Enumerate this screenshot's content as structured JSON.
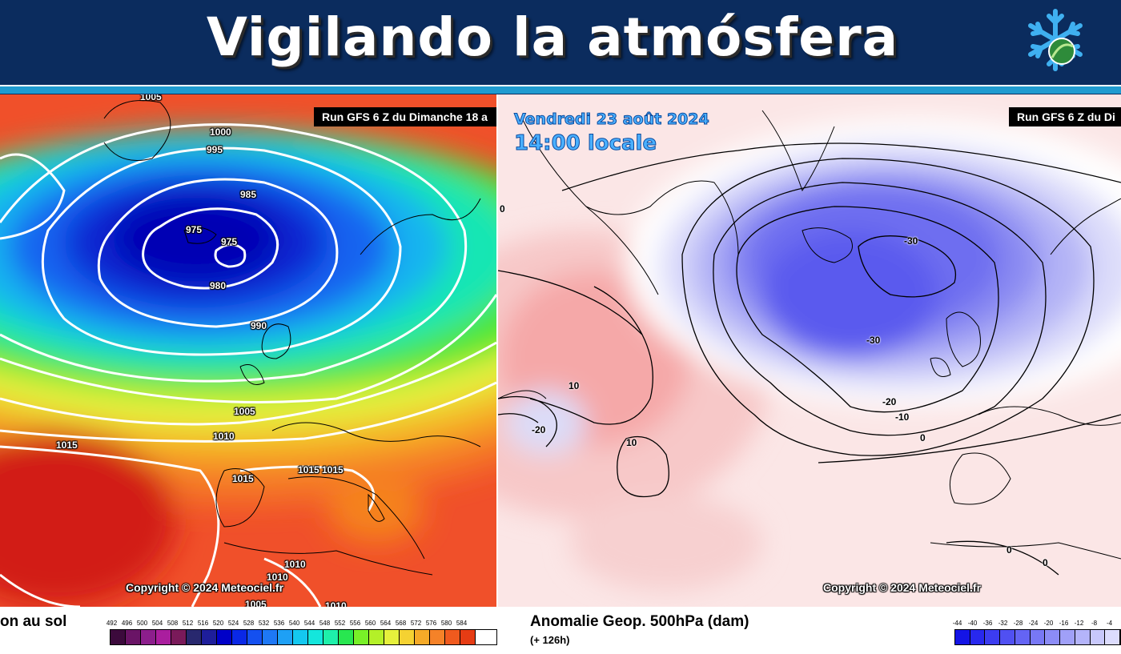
{
  "banner": {
    "title": "Vigilando la atmósfera",
    "logo_icon": "snowflake-leaf-icon"
  },
  "left_map": {
    "run_label": "Run GFS 6 Z du Dimanche 18 a",
    "copyright": "Copyright © 2024 Meteociel.fr",
    "isobars": [
      "1005",
      "1000",
      "995",
      "985",
      "975",
      "975",
      "980",
      "990",
      "1005",
      "1010",
      "1015",
      "1015",
      "1015",
      "1015",
      "1010",
      "1010",
      "1005",
      "1010"
    ],
    "legend_title": "on au sol",
    "scale_ticks": [
      "492",
      "496",
      "500",
      "504",
      "508",
      "512",
      "516",
      "520",
      "524",
      "528",
      "532",
      "536",
      "540",
      "544",
      "548",
      "552",
      "556",
      "560",
      "564",
      "568",
      "572",
      "576",
      "580",
      "584"
    ],
    "scale_colors": [
      "#3c0a3c",
      "#6a1466",
      "#8c1e8c",
      "#aa1e9e",
      "#7a1a5a",
      "#28286e",
      "#1e1e9a",
      "#0000c8",
      "#0a28e6",
      "#1450f0",
      "#1e78f5",
      "#1ea0f5",
      "#14c8f0",
      "#14e6dc",
      "#1ef0aa",
      "#28e650",
      "#78f028",
      "#b4f028",
      "#e6f03c",
      "#f5d232",
      "#f5aa28",
      "#f58228",
      "#f05a1e",
      "#e63c14"
    ]
  },
  "right_map": {
    "date": "Vendredi 23 août 2024",
    "time": "14:00 locale",
    "run_label": "Run GFS 6 Z du Di",
    "copyright": "Copyright © 2024 Meteociel.fr",
    "contours": [
      "-30",
      "-30",
      "-20",
      "-10",
      "0",
      "10",
      "10",
      "-20",
      "0",
      "0",
      "0"
    ],
    "legend_title": "Anomalie Geop. 500hPa (dam)",
    "legend_sub": "(+ 126h)",
    "scale_ticks": [
      "-44",
      "-40",
      "-36",
      "-32",
      "-28",
      "-24",
      "-20",
      "-16",
      "-12",
      "-8",
      "-4"
    ],
    "scale_colors": [
      "#1414e6",
      "#2828ee",
      "#3c3cf0",
      "#5050f2",
      "#6464f4",
      "#7878f5",
      "#8c8cf6",
      "#a0a0f8",
      "#b4b4fa",
      "#c8c8fb",
      "#dcdcfd"
    ]
  }
}
